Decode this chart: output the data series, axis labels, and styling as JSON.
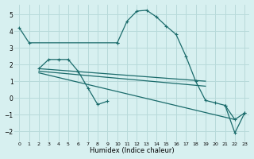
{
  "xlabel": "Humidex (Indice chaleur)",
  "bg_color": "#d7f0f0",
  "grid_color": "#b8dada",
  "line_color": "#1a6b6b",
  "xlim": [
    -0.5,
    23.5
  ],
  "ylim": [
    -2.6,
    5.6
  ],
  "xticks": [
    0,
    1,
    2,
    3,
    4,
    5,
    6,
    7,
    8,
    9,
    10,
    11,
    12,
    13,
    14,
    15,
    16,
    17,
    18,
    19,
    20,
    21,
    22,
    23
  ],
  "yticks": [
    -2,
    -1,
    0,
    1,
    2,
    3,
    4,
    5
  ],
  "series": [
    {
      "x": [
        0,
        1,
        10
      ],
      "y": [
        4.2,
        3.3,
        3.3
      ],
      "marker": "+"
    },
    {
      "x": [
        10,
        11,
        12,
        13,
        14,
        15,
        16,
        17,
        18,
        19,
        20,
        21,
        22,
        23
      ],
      "y": [
        3.3,
        4.6,
        5.2,
        5.25,
        4.85,
        4.3,
        3.8,
        2.5,
        1.0,
        -0.15,
        -0.3,
        -0.45,
        -1.3,
        -0.9
      ],
      "marker": "+"
    },
    {
      "x": [
        2,
        3,
        4,
        5,
        6,
        7,
        8,
        9
      ],
      "y": [
        1.75,
        2.3,
        2.3,
        2.3,
        1.6,
        0.6,
        -0.4,
        -0.2
      ],
      "marker": "+"
    },
    {
      "x": [
        2,
        19
      ],
      "y": [
        1.75,
        1.0
      ],
      "marker": null
    },
    {
      "x": [
        2,
        19
      ],
      "y": [
        1.6,
        0.7
      ],
      "marker": null
    },
    {
      "x": [
        2,
        22
      ],
      "y": [
        1.5,
        -1.3
      ],
      "marker": null
    },
    {
      "x": [
        21,
        22,
        23
      ],
      "y": [
        -0.45,
        -2.1,
        -0.9
      ],
      "marker": "+"
    }
  ]
}
